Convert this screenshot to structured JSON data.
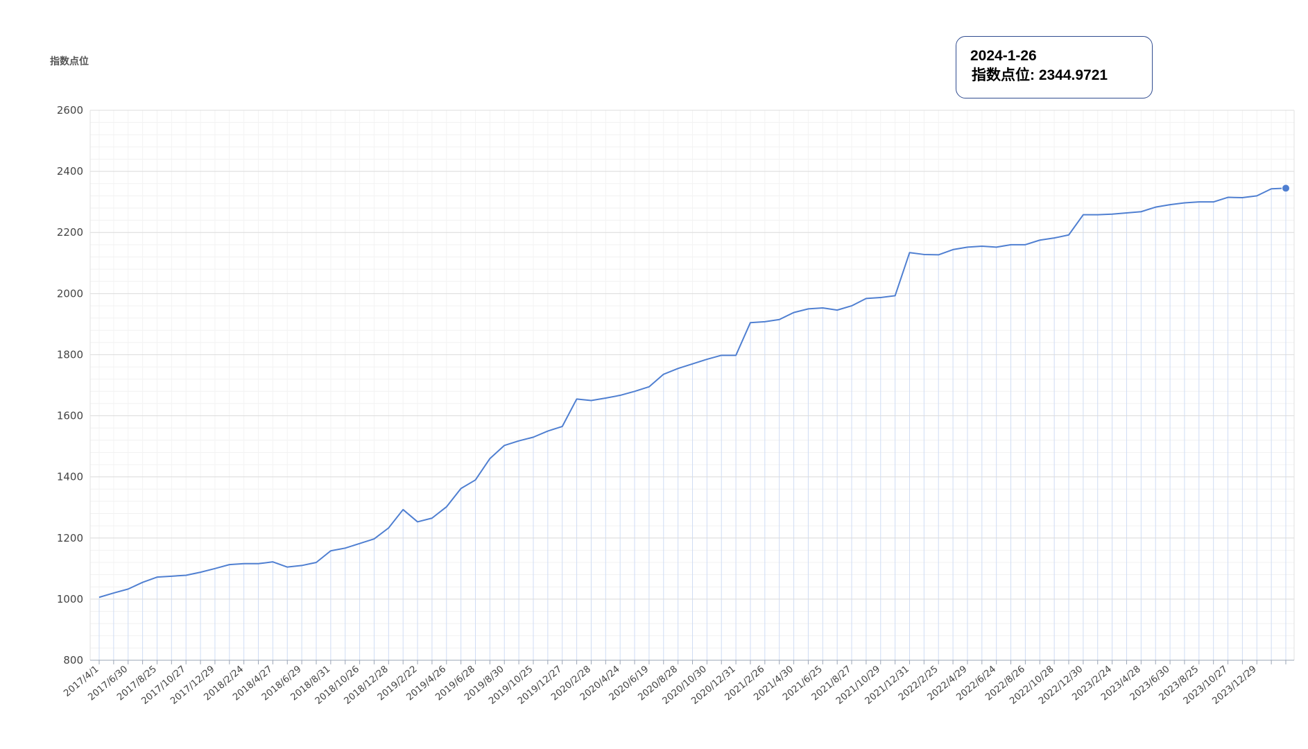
{
  "chart_data": {
    "type": "line",
    "ytitle": "指数点位",
    "ylim": [
      800,
      2600
    ],
    "yticks": [
      800,
      1000,
      1200,
      1400,
      1600,
      1800,
      2000,
      2200,
      2400,
      2600
    ],
    "grid": true,
    "line_color": "#4f7fd1",
    "tick_labels": [
      "2017/4/1",
      "2017/6/30",
      "2017/8/25",
      "2017/10/27",
      "2017/12/29",
      "2018/2/24",
      "2018/4/27",
      "2018/6/29",
      "2018/8/31",
      "2018/10/26",
      "2018/12/28",
      "2019/2/22",
      "2019/4/26",
      "2019/6/28",
      "2019/8/30",
      "2019/10/25",
      "2019/12/27",
      "2020/2/28",
      "2020/4/24",
      "2020/6/19",
      "2020/8/28",
      "2020/10/30",
      "2020/12/31",
      "2021/2/26",
      "2021/4/30",
      "2021/6/25",
      "2021/8/27",
      "2021/10/29",
      "2021/12/31",
      "2022/2/25",
      "2022/4/29",
      "2022/6/24",
      "2022/8/26",
      "2022/10/28",
      "2022/12/30",
      "2023/2/24",
      "2023/4/28",
      "2023/6/30",
      "2023/8/25",
      "2023/10/27",
      "2023/12/29"
    ],
    "values": [
      1006,
      1020,
      1033,
      1055,
      1072,
      1075,
      1078,
      1088,
      1100,
      1113,
      1116,
      1116,
      1122,
      1105,
      1110,
      1120,
      1158,
      1167,
      1182,
      1197,
      1233,
      1293,
      1253,
      1265,
      1302,
      1362,
      1390,
      1460,
      1503,
      1518,
      1530,
      1550,
      1565,
      1655,
      1650,
      1658,
      1667,
      1680,
      1695,
      1736,
      1755,
      1770,
      1785,
      1798,
      1798,
      1905,
      1908,
      1915,
      1938,
      1950,
      1953,
      1946,
      1960,
      1984,
      1987,
      1993,
      2134,
      2128,
      2127,
      2144,
      2152,
      2155,
      2152,
      2160,
      2160,
      2175,
      2182,
      2192,
      2258,
      2258,
      2260,
      2264,
      2268,
      2283,
      2291,
      2297,
      2300,
      2300,
      2315,
      2314,
      2320,
      2343,
      2344.9721
    ],
    "highlight": {
      "date": "2024-1-26",
      "series_label": "指数点位",
      "value": "2344.9721",
      "value_numeric": 2344.9721
    }
  }
}
